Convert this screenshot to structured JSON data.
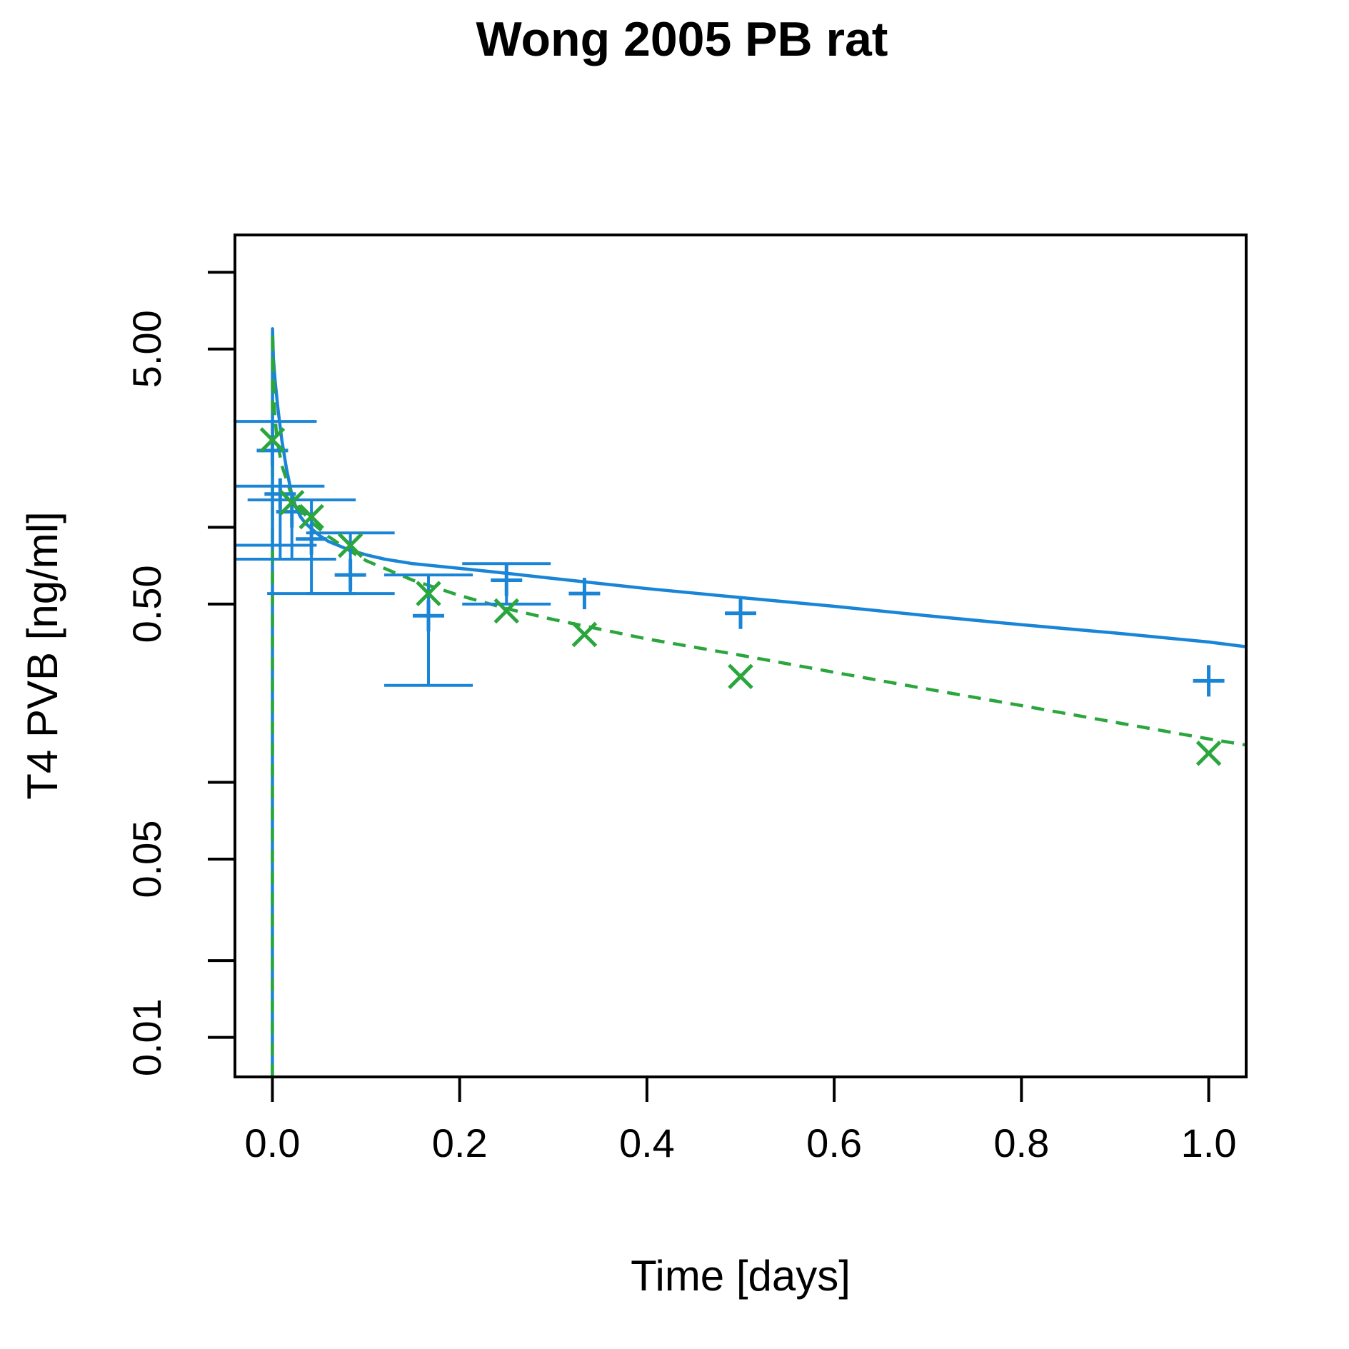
{
  "chart_data": {
    "type": "scatter",
    "title": "Wong 2005 PB rat",
    "xlabel": "Time [days]",
    "ylabel": "T4 PVB [ng/ml]",
    "xlim": [
      -0.04,
      1.04
    ],
    "ylim": [
      0.007,
      14
    ],
    "y_scale": "log",
    "x_ticks": [
      0.0,
      0.2,
      0.4,
      0.6,
      0.8,
      1.0
    ],
    "x_tick_labels": [
      "0.0",
      "0.2",
      "0.4",
      "0.6",
      "0.8",
      "1.0"
    ],
    "y_ticks": [
      0.01,
      0.02,
      0.05,
      0.1,
      0.5,
      1,
      5,
      10
    ],
    "y_tick_labels": [
      "0.01",
      "",
      "0.05",
      "",
      "0.50",
      "",
      "5.00",
      ""
    ],
    "grid": false,
    "colors": {
      "blue": "#1a85d6",
      "green": "#2aa63d"
    },
    "series": [
      {
        "style": "solid-line",
        "color": "#1a85d6",
        "x": [
          0.0,
          0.0001,
          0.001,
          0.003,
          0.006,
          0.01,
          0.015,
          0.02,
          0.025,
          0.03,
          0.035,
          0.04,
          0.05,
          0.06,
          0.07,
          0.08,
          0.09,
          0.1,
          0.12,
          0.15,
          0.2,
          0.25,
          0.3,
          0.4,
          0.5,
          0.6,
          0.7,
          0.8,
          0.9,
          1.0,
          1.04
        ],
        "y": [
          0.007,
          6.0,
          4.6,
          3.7,
          2.9,
          2.2,
          1.7,
          1.38,
          1.2,
          1.1,
          1.04,
          1.0,
          0.93,
          0.88,
          0.85,
          0.82,
          0.8,
          0.78,
          0.75,
          0.72,
          0.69,
          0.66,
          0.63,
          0.575,
          0.53,
          0.49,
          0.45,
          0.415,
          0.385,
          0.355,
          0.34
        ]
      },
      {
        "style": "dashed-line",
        "color": "#2aa63d",
        "x": [
          0.0,
          0.0001,
          0.002,
          0.005,
          0.01,
          0.02,
          0.03,
          0.04,
          0.06,
          0.08,
          0.1,
          0.15,
          0.2,
          0.25,
          0.3,
          0.4,
          0.5,
          0.6,
          0.7,
          0.8,
          0.9,
          1.0,
          1.04
        ],
        "y": [
          0.007,
          5.8,
          2.9,
          2.2,
          1.75,
          1.35,
          1.18,
          1.06,
          0.92,
          0.82,
          0.74,
          0.62,
          0.54,
          0.48,
          0.435,
          0.365,
          0.315,
          0.27,
          0.232,
          0.2,
          0.172,
          0.148,
          0.14
        ]
      },
      {
        "style": "plus-markers-with-error-bars",
        "color": "#1a85d6",
        "points": [
          {
            "x": 0.0,
            "y": 2.0,
            "lo": 0.85,
            "hi": 2.6
          },
          {
            "x": 0.0083,
            "y": 1.35,
            "lo": 0.75,
            "hi": 1.45
          },
          {
            "x": 0.0208,
            "y": 1.15,
            "lo": 0.75,
            "hi": 1.28
          },
          {
            "x": 0.0417,
            "y": 0.9,
            "lo": 0.55,
            "hi": 1.28
          },
          {
            "x": 0.0833,
            "y": 0.65,
            "lo": 0.55,
            "hi": 0.95
          },
          {
            "x": 0.1667,
            "y": 0.45,
            "lo": 0.24,
            "hi": 0.65
          },
          {
            "x": 0.25,
            "y": 0.62,
            "lo": 0.5,
            "hi": 0.72
          },
          {
            "x": 0.3333,
            "y": 0.55,
            "lo": 0.55,
            "hi": 0.55
          },
          {
            "x": 0.5,
            "y": 0.46,
            "lo": 0.46,
            "hi": 0.46
          },
          {
            "x": 1.0,
            "y": 0.25,
            "lo": 0.25,
            "hi": 0.25
          }
        ]
      },
      {
        "style": "x-markers",
        "color": "#2aa63d",
        "points": [
          {
            "x": 0.0,
            "y": 2.2
          },
          {
            "x": 0.0208,
            "y": 1.25
          },
          {
            "x": 0.0417,
            "y": 1.1
          },
          {
            "x": 0.0833,
            "y": 0.85
          },
          {
            "x": 0.1667,
            "y": 0.55
          },
          {
            "x": 0.25,
            "y": 0.47
          },
          {
            "x": 0.3333,
            "y": 0.38
          },
          {
            "x": 0.5,
            "y": 0.26
          },
          {
            "x": 1.0,
            "y": 0.13
          }
        ]
      }
    ]
  }
}
